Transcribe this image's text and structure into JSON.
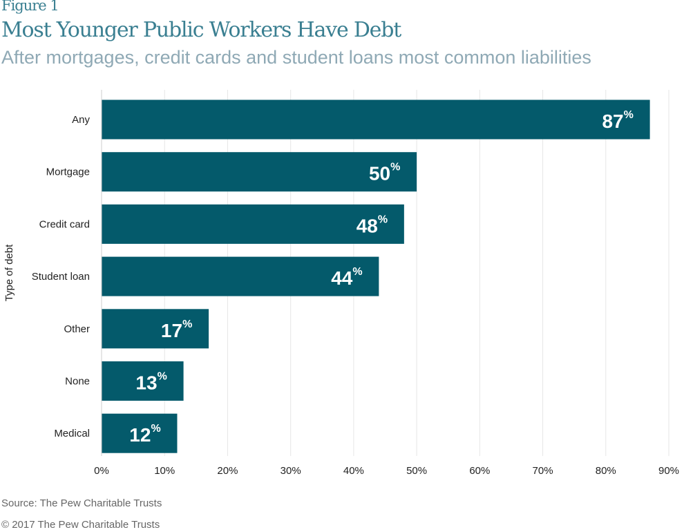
{
  "figure_label": "Figure 1",
  "source": "Source: The Pew Charitable Trusts",
  "copyright": "© 2017 The Pew Charitable Trusts",
  "colors": {
    "bar": "#045a6b",
    "title": "#3a7f91",
    "subtitle": "#8fa9b5",
    "grid": "#e6e6e6"
  },
  "chart_data": {
    "type": "bar",
    "orientation": "horizontal",
    "title": "Most Younger Public Workers Have Debt",
    "subtitle": "After mortgages, credit cards and student loans most common liabilities",
    "xlabel": "",
    "ylabel": "Type of debt",
    "categories": [
      "Any",
      "Mortgage",
      "Credit card",
      "Student loan",
      "Other",
      "None",
      "Medical"
    ],
    "values": [
      87,
      50,
      48,
      44,
      17,
      13,
      12
    ],
    "value_suffix": "%",
    "xlim": [
      0,
      90
    ],
    "xticks": [
      "0%",
      "10%",
      "20%",
      "30%",
      "40%",
      "50%",
      "60%",
      "70%",
      "80%",
      "90%"
    ],
    "grid": true
  }
}
